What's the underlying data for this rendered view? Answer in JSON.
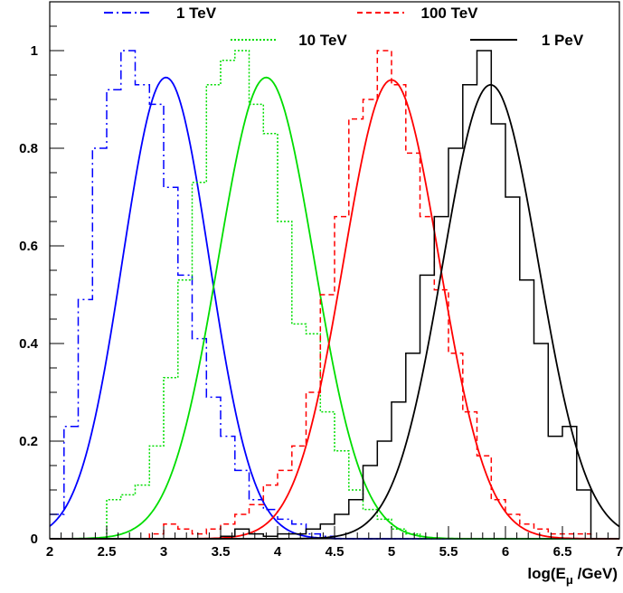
{
  "chart_data": {
    "type": "line",
    "title": "",
    "xlabel": "log(E_μ /GeV)",
    "xlabel_parts": {
      "pre": "log(E",
      "sub": "μ",
      "post": " /GeV)"
    },
    "ylabel": "",
    "xlim": [
      2,
      7
    ],
    "ylim": [
      0,
      1.1
    ],
    "x_ticks": [
      "2",
      "2.5",
      "3",
      "3.5",
      "4",
      "4.5",
      "5",
      "5.5",
      "6",
      "6.5",
      "7"
    ],
    "y_ticks": [
      "0",
      "0.2",
      "0.4",
      "0.6",
      "0.8",
      "1"
    ],
    "grid": false,
    "legend": "top",
    "bin_width": 0.125,
    "series": [
      {
        "name": "1 TeV",
        "color": "#0000ff",
        "style": "dash-dot",
        "fit": {
          "peak": 0.945,
          "mean": 3.02,
          "sigma": 0.38
        },
        "hist": [
          [
            2.0,
            0.05
          ],
          [
            2.125,
            0.23
          ],
          [
            2.25,
            0.49
          ],
          [
            2.375,
            0.8
          ],
          [
            2.5,
            0.92
          ],
          [
            2.625,
            1.0
          ],
          [
            2.75,
            0.93
          ],
          [
            2.875,
            0.89
          ],
          [
            3.0,
            0.72
          ],
          [
            3.125,
            0.54
          ],
          [
            3.25,
            0.41
          ],
          [
            3.375,
            0.29
          ],
          [
            3.5,
            0.21
          ],
          [
            3.625,
            0.14
          ],
          [
            3.75,
            0.08
          ],
          [
            3.875,
            0.06
          ],
          [
            4.0,
            0.04
          ],
          [
            4.125,
            0.03
          ],
          [
            4.25,
            0.01
          ],
          [
            4.375,
            0.005
          ],
          [
            4.5,
            0.0
          ],
          [
            4.625,
            0.0
          ],
          [
            4.75,
            0.0
          ],
          [
            4.875,
            0.0
          ],
          [
            5.0,
            0.0
          ],
          [
            5.125,
            0.0
          ],
          [
            5.25,
            0.0
          ],
          [
            5.375,
            0.0
          ],
          [
            5.5,
            0.0
          ],
          [
            5.625,
            0.0
          ],
          [
            5.75,
            0.0
          ],
          [
            5.875,
            0.0
          ],
          [
            6.0,
            0.0
          ],
          [
            6.125,
            0.0
          ],
          [
            6.25,
            0.0
          ],
          [
            6.375,
            0.0
          ],
          [
            6.5,
            0.0
          ],
          [
            6.625,
            0.0
          ],
          [
            6.75,
            0.0
          ],
          [
            6.875,
            0.0
          ]
        ]
      },
      {
        "name": "10 TeV",
        "color": "#00dd00",
        "style": "dotted",
        "fit": {
          "peak": 0.945,
          "mean": 3.9,
          "sigma": 0.42
        },
        "hist": [
          [
            2.0,
            0.0
          ],
          [
            2.125,
            0.0
          ],
          [
            2.25,
            0.0
          ],
          [
            2.375,
            0.0
          ],
          [
            2.5,
            0.08
          ],
          [
            2.625,
            0.09
          ],
          [
            2.75,
            0.11
          ],
          [
            2.875,
            0.19
          ],
          [
            3.0,
            0.33
          ],
          [
            3.125,
            0.53
          ],
          [
            3.25,
            0.73
          ],
          [
            3.375,
            0.93
          ],
          [
            3.5,
            0.98
          ],
          [
            3.625,
            1.0
          ],
          [
            3.75,
            0.89
          ],
          [
            3.875,
            0.83
          ],
          [
            4.0,
            0.65
          ],
          [
            4.125,
            0.44
          ],
          [
            4.25,
            0.42
          ],
          [
            4.375,
            0.26
          ],
          [
            4.5,
            0.18
          ],
          [
            4.625,
            0.1
          ],
          [
            4.75,
            0.06
          ],
          [
            4.875,
            0.04
          ],
          [
            5.0,
            0.02
          ],
          [
            5.125,
            0.01
          ],
          [
            5.25,
            0.0
          ],
          [
            5.375,
            0.0
          ],
          [
            5.5,
            0.0
          ],
          [
            5.625,
            0.0
          ],
          [
            5.75,
            0.0
          ],
          [
            5.875,
            0.0
          ],
          [
            6.0,
            0.0
          ],
          [
            6.125,
            0.0
          ],
          [
            6.25,
            0.0
          ],
          [
            6.375,
            0.0
          ],
          [
            6.5,
            0.0
          ],
          [
            6.625,
            0.0
          ],
          [
            6.75,
            0.0
          ],
          [
            6.875,
            0.0
          ]
        ]
      },
      {
        "name": "100 TeV",
        "color": "#ff0000",
        "style": "dashed",
        "fit": {
          "peak": 0.94,
          "mean": 5.0,
          "sigma": 0.42
        },
        "hist": [
          [
            2.0,
            0.0
          ],
          [
            2.125,
            0.0
          ],
          [
            2.25,
            0.0
          ],
          [
            2.375,
            0.0
          ],
          [
            2.5,
            0.0
          ],
          [
            2.625,
            0.0
          ],
          [
            2.75,
            0.0
          ],
          [
            2.875,
            0.01
          ],
          [
            3.0,
            0.03
          ],
          [
            3.125,
            0.02
          ],
          [
            3.25,
            0.01
          ],
          [
            3.375,
            0.02
          ],
          [
            3.5,
            0.03
          ],
          [
            3.625,
            0.05
          ],
          [
            3.75,
            0.07
          ],
          [
            3.875,
            0.11
          ],
          [
            4.0,
            0.14
          ],
          [
            4.125,
            0.19
          ],
          [
            4.25,
            0.3
          ],
          [
            4.375,
            0.5
          ],
          [
            4.5,
            0.66
          ],
          [
            4.625,
            0.86
          ],
          [
            4.75,
            0.9
          ],
          [
            4.875,
            1.0
          ],
          [
            5.0,
            0.93
          ],
          [
            5.125,
            0.79
          ],
          [
            5.25,
            0.66
          ],
          [
            5.375,
            0.51
          ],
          [
            5.5,
            0.38
          ],
          [
            5.625,
            0.26
          ],
          [
            5.75,
            0.17
          ],
          [
            5.875,
            0.08
          ],
          [
            6.0,
            0.05
          ],
          [
            6.125,
            0.03
          ],
          [
            6.25,
            0.02
          ],
          [
            6.375,
            0.01
          ],
          [
            6.5,
            0.01
          ],
          [
            6.625,
            0.01
          ],
          [
            6.75,
            0.0
          ],
          [
            6.875,
            0.0
          ]
        ]
      },
      {
        "name": "1 PeV",
        "color": "#000000",
        "style": "solid",
        "fit": {
          "peak": 0.93,
          "mean": 5.87,
          "sigma": 0.42
        },
        "hist": [
          [
            2.0,
            0.0
          ],
          [
            2.125,
            0.0
          ],
          [
            2.25,
            0.0
          ],
          [
            2.375,
            0.0
          ],
          [
            2.5,
            0.0
          ],
          [
            2.625,
            0.0
          ],
          [
            2.75,
            0.0
          ],
          [
            2.875,
            0.0
          ],
          [
            3.0,
            0.0
          ],
          [
            3.125,
            0.0
          ],
          [
            3.25,
            0.0
          ],
          [
            3.375,
            0.0
          ],
          [
            3.5,
            0.005
          ],
          [
            3.625,
            0.02
          ],
          [
            3.75,
            0.01
          ],
          [
            3.875,
            0.005
          ],
          [
            4.0,
            0.01
          ],
          [
            4.125,
            0.01
          ],
          [
            4.25,
            0.02
          ],
          [
            4.375,
            0.03
          ],
          [
            4.5,
            0.05
          ],
          [
            4.625,
            0.08
          ],
          [
            4.75,
            0.15
          ],
          [
            4.875,
            0.2
          ],
          [
            5.0,
            0.28
          ],
          [
            5.125,
            0.38
          ],
          [
            5.25,
            0.54
          ],
          [
            5.375,
            0.66
          ],
          [
            5.5,
            0.8
          ],
          [
            5.625,
            0.93
          ],
          [
            5.75,
            1.0
          ],
          [
            5.875,
            0.85
          ],
          [
            6.0,
            0.7
          ],
          [
            6.125,
            0.53
          ],
          [
            6.25,
            0.4
          ],
          [
            6.375,
            0.21
          ],
          [
            6.5,
            0.23
          ],
          [
            6.625,
            0.1
          ],
          [
            6.75,
            0.0
          ],
          [
            6.875,
            0.0
          ]
        ]
      }
    ]
  }
}
